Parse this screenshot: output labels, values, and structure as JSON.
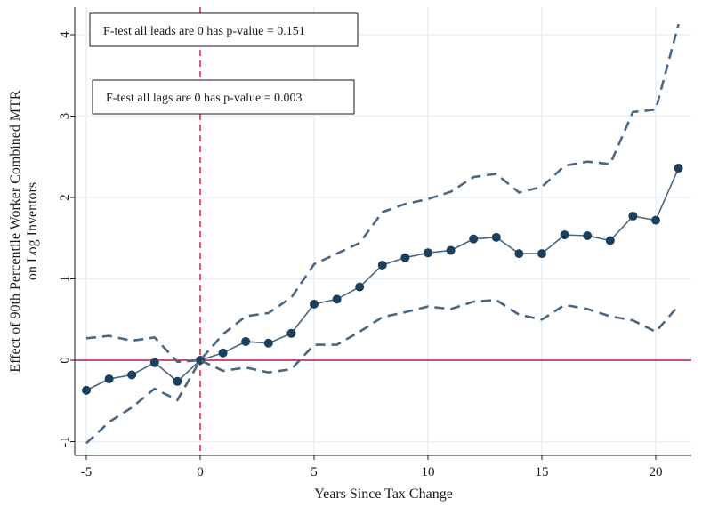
{
  "chart_data": {
    "type": "line",
    "title": "",
    "xlabel": "Years Since Tax Change",
    "ylabel": [
      "Effect of 90th Percentile Worker Combined MTR",
      "on Log Inventors"
    ],
    "xlim": [
      -5,
      21
    ],
    "ylim": [
      -1,
      4.1
    ],
    "grid": true,
    "x_ticks": [
      -5,
      0,
      5,
      10,
      15,
      20
    ],
    "y_ticks": [
      -1,
      0,
      1,
      2,
      3,
      4
    ],
    "x": [
      -5,
      -4,
      -3,
      -2,
      -1,
      0,
      1,
      2,
      3,
      4,
      5,
      6,
      7,
      8,
      9,
      10,
      11,
      12,
      13,
      14,
      15,
      16,
      17,
      18,
      19,
      20,
      21
    ],
    "series": [
      {
        "role": "estimate",
        "style": "solid-markers",
        "values": [
          -0.37,
          -0.23,
          -0.18,
          -0.03,
          -0.26,
          0.0,
          0.09,
          0.23,
          0.21,
          0.33,
          0.69,
          0.75,
          0.9,
          1.17,
          1.26,
          1.32,
          1.35,
          1.49,
          1.51,
          1.31,
          1.31,
          1.54,
          1.53,
          1.47,
          1.77,
          1.72,
          2.36
        ]
      },
      {
        "role": "upper-ci",
        "style": "dashed",
        "values": [
          0.27,
          0.3,
          0.24,
          0.28,
          -0.02,
          0.0,
          0.32,
          0.54,
          0.58,
          0.77,
          1.18,
          1.31,
          1.44,
          1.82,
          1.92,
          1.98,
          2.07,
          2.25,
          2.29,
          2.06,
          2.13,
          2.39,
          2.44,
          2.41,
          3.05,
          3.08,
          4.13
        ]
      },
      {
        "role": "lower-ci",
        "style": "dashed",
        "values": [
          -1.02,
          -0.76,
          -0.58,
          -0.35,
          -0.49,
          0.0,
          -0.13,
          -0.09,
          -0.15,
          -0.11,
          0.19,
          0.19,
          0.35,
          0.53,
          0.59,
          0.66,
          0.63,
          0.72,
          0.74,
          0.56,
          0.5,
          0.68,
          0.63,
          0.54,
          0.49,
          0.35,
          0.67
        ]
      }
    ],
    "reference_lines": [
      {
        "axis": "y",
        "value": 0,
        "style": "solid",
        "color": "#b5174a"
      },
      {
        "axis": "x",
        "value": 0,
        "style": "dashed",
        "color": "#d6324e"
      }
    ],
    "annotations": [
      "F-test all leads are 0 has p-value = 0.151",
      "F-test all lags are 0 has p-value = 0.003"
    ],
    "colors": {
      "series": "#1d3f5e",
      "ci": "#4a6680",
      "zero_line": "#b5174a",
      "event_line": "#d6324e",
      "grid": "#eaf0f5"
    }
  }
}
